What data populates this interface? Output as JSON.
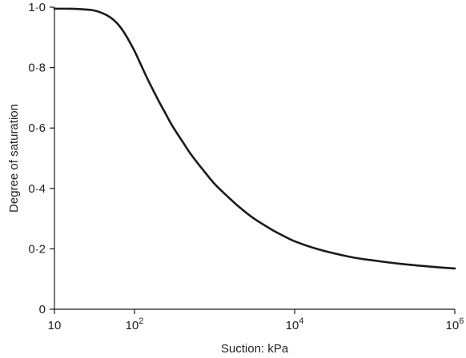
{
  "chart_data": {
    "type": "line",
    "title": "",
    "xlabel": "Suction: kPa",
    "ylabel": "Degree of saturation",
    "x_scale": "log",
    "xlim": [
      10,
      1000000
    ],
    "ylim": [
      0,
      1.0
    ],
    "grid": false,
    "legend": "none",
    "x_ticks": [
      {
        "value": 10,
        "base": "10",
        "exp": ""
      },
      {
        "value": 100,
        "base": "10",
        "exp": "2"
      },
      {
        "value": 10000,
        "base": "10",
        "exp": "4"
      },
      {
        "value": 1000000,
        "base": "10",
        "exp": "6"
      }
    ],
    "y_ticks": [
      {
        "value": 0,
        "label": "0"
      },
      {
        "value": 0.2,
        "label": "0·2"
      },
      {
        "value": 0.4,
        "label": "0·4"
      },
      {
        "value": 0.6,
        "label": "0·6"
      },
      {
        "value": 0.8,
        "label": "0·8"
      },
      {
        "value": 1.0,
        "label": "1·0"
      }
    ],
    "series": [
      {
        "color": "#1a1a1a",
        "x": [
          10,
          15,
          20,
          30,
          40,
          50,
          60,
          70,
          80,
          100,
          120,
          150,
          200,
          250,
          300,
          400,
          500,
          700,
          1000,
          1500,
          2000,
          3000,
          5000,
          7000,
          10000,
          20000,
          50000,
          100000,
          200000,
          500000,
          1000000
        ],
        "y": [
          0.995,
          0.995,
          0.994,
          0.99,
          0.98,
          0.966,
          0.948,
          0.926,
          0.902,
          0.855,
          0.81,
          0.755,
          0.69,
          0.643,
          0.605,
          0.554,
          0.515,
          0.465,
          0.415,
          0.37,
          0.34,
          0.303,
          0.266,
          0.245,
          0.225,
          0.198,
          0.173,
          0.161,
          0.151,
          0.141,
          0.135
        ]
      }
    ]
  }
}
